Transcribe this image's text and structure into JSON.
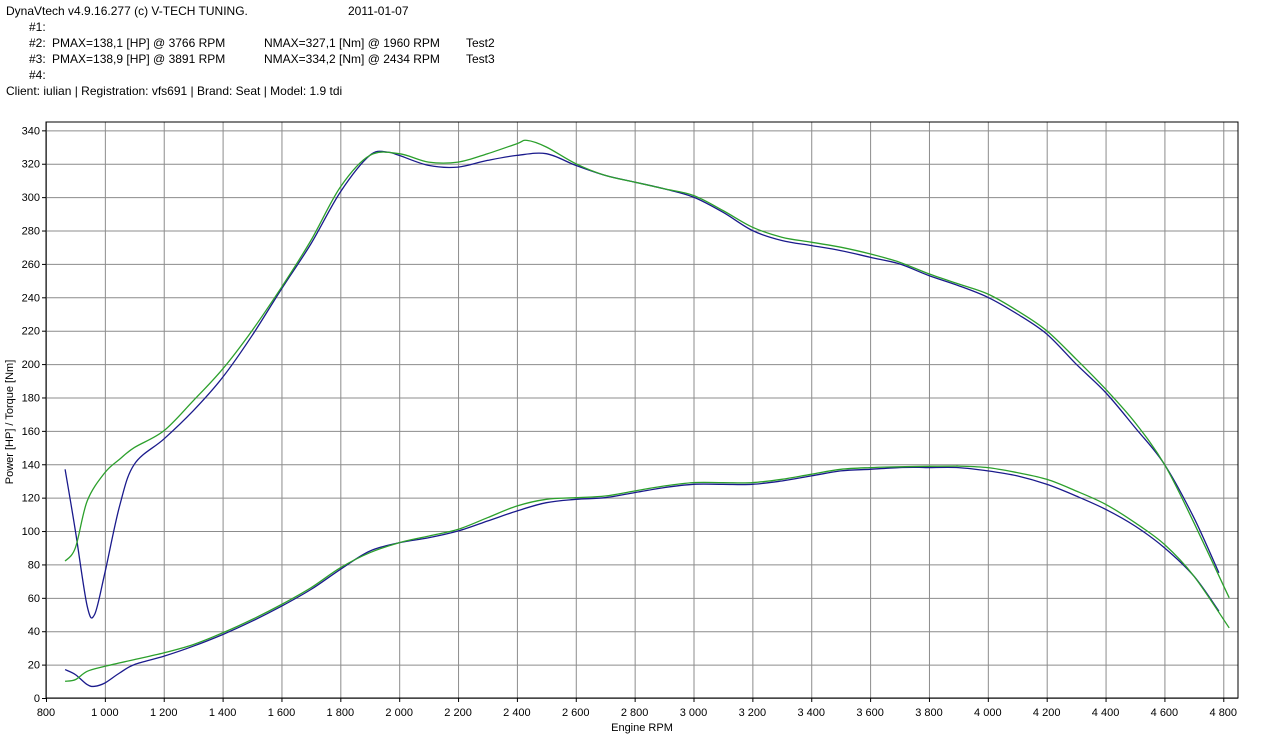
{
  "header": {
    "app_line": "DynaVtech v4.9.16.277 (c) V-TECH TUNING.",
    "date": "2011-01-07",
    "runs": [
      {
        "id": "#1:",
        "pmax": "",
        "nmax": "",
        "name": ""
      },
      {
        "id": "#2:",
        "pmax": "PMAX=138,1 [HP] @ 3766 RPM",
        "nmax": "NMAX=327,1 [Nm] @ 1960 RPM",
        "name": "Test2"
      },
      {
        "id": "#3:",
        "pmax": "PMAX=138,9 [HP] @ 3891 RPM",
        "nmax": "NMAX=334,2 [Nm] @ 2434 RPM",
        "name": "Test3"
      },
      {
        "id": "#4:",
        "pmax": "",
        "nmax": "",
        "name": ""
      }
    ],
    "client_line": "Client: iulian | Registration: vfs691 | Brand: Seat | Model: 1.9 tdi"
  },
  "chart_data": {
    "type": "line",
    "xlabel": "Engine RPM",
    "ylabel": "Power [HP] / Torque [Nm]",
    "xlim": [
      800,
      4850
    ],
    "ylim": [
      0,
      345
    ],
    "x_ticks": [
      800,
      1000,
      1200,
      1400,
      1600,
      1800,
      2000,
      2200,
      2400,
      2600,
      2800,
      3000,
      3200,
      3400,
      3600,
      3800,
      4000,
      4200,
      4400,
      4600,
      4800
    ],
    "x_tick_labels": [
      "800",
      "1 000",
      "1 200",
      "1 400",
      "1 600",
      "1 800",
      "2 000",
      "2 200",
      "2 400",
      "2 600",
      "2 800",
      "3 000",
      "3 200",
      "3 400",
      "3 600",
      "3 800",
      "4 000",
      "4 200",
      "4 400",
      "4 600",
      "4 800"
    ],
    "y_ticks": [
      0,
      20,
      40,
      60,
      80,
      100,
      120,
      140,
      160,
      180,
      200,
      220,
      240,
      260,
      280,
      300,
      320,
      340
    ],
    "grid": true,
    "series": [
      {
        "run": "Test2",
        "quantity": "torque",
        "color": "#1a1a8c",
        "x": [
          865,
          900,
          940,
          965,
          1000,
          1050,
          1100,
          1200,
          1300,
          1400,
          1500,
          1600,
          1700,
          1800,
          1900,
          1960,
          2000,
          2100,
          2200,
          2300,
          2400,
          2500,
          2600,
          2700,
          2800,
          2900,
          3000,
          3100,
          3200,
          3300,
          3400,
          3500,
          3600,
          3700,
          3800,
          3900,
          4000,
          4100,
          4200,
          4300,
          4400,
          4500,
          4600,
          4700,
          4785
        ],
        "y": [
          137,
          100,
          55,
          50,
          75,
          115,
          140,
          155,
          172,
          192,
          217,
          245,
          272,
          303,
          325,
          327,
          325,
          319,
          318,
          322,
          325,
          326,
          319,
          313,
          309,
          305,
          300,
          291,
          280,
          274,
          271,
          268,
          264,
          260,
          253,
          247,
          240,
          230,
          218,
          200,
          183,
          162,
          140,
          108,
          75
        ]
      },
      {
        "run": "Test3",
        "quantity": "torque",
        "color": "#2ca02c",
        "x": [
          865,
          900,
          940,
          1000,
          1050,
          1100,
          1200,
          1300,
          1400,
          1500,
          1600,
          1700,
          1800,
          1900,
          2000,
          2100,
          2200,
          2300,
          2400,
          2434,
          2500,
          2600,
          2700,
          2800,
          2900,
          3000,
          3100,
          3200,
          3300,
          3400,
          3500,
          3600,
          3700,
          3800,
          3900,
          4000,
          4100,
          4200,
          4300,
          4400,
          4500,
          4600,
          4700,
          4820
        ],
        "y": [
          82,
          90,
          118,
          135,
          143,
          150,
          160,
          178,
          197,
          220,
          246,
          274,
          306,
          325,
          326,
          321,
          321,
          326,
          332,
          334,
          330,
          320,
          313,
          309,
          305,
          301,
          292,
          282,
          276,
          273,
          270,
          266,
          261,
          254,
          248,
          242,
          232,
          220,
          203,
          185,
          165,
          140,
          105,
          60
        ]
      },
      {
        "run": "Test2",
        "quantity": "power",
        "color": "#1a1a8c",
        "x": [
          865,
          900,
          940,
          965,
          1000,
          1050,
          1100,
          1200,
          1300,
          1400,
          1500,
          1600,
          1700,
          1800,
          1900,
          2000,
          2100,
          2200,
          2300,
          2400,
          2500,
          2600,
          2700,
          2800,
          2900,
          3000,
          3100,
          3200,
          3300,
          3400,
          3500,
          3600,
          3700,
          3766,
          3800,
          3900,
          4000,
          4100,
          4200,
          4300,
          4400,
          4500,
          4600,
          4700,
          4785
        ],
        "y": [
          17,
          14,
          8,
          7,
          9,
          15,
          20,
          25,
          31,
          38,
          46,
          55,
          65,
          77,
          88,
          93,
          96,
          100,
          106,
          112,
          117,
          119,
          120,
          123,
          126,
          128,
          128,
          128,
          130,
          133,
          136,
          137,
          138,
          138.1,
          138,
          138,
          136,
          133,
          128,
          121,
          113,
          103,
          90,
          73,
          52
        ]
      },
      {
        "run": "Test3",
        "quantity": "power",
        "color": "#2ca02c",
        "x": [
          865,
          900,
          940,
          1000,
          1050,
          1100,
          1200,
          1300,
          1400,
          1500,
          1600,
          1700,
          1800,
          1900,
          2000,
          2100,
          2200,
          2300,
          2400,
          2500,
          2600,
          2700,
          2800,
          2900,
          3000,
          3100,
          3200,
          3300,
          3400,
          3500,
          3600,
          3700,
          3800,
          3891,
          3900,
          4000,
          4100,
          4200,
          4300,
          4400,
          4500,
          4600,
          4700,
          4820
        ],
        "y": [
          10,
          11,
          16,
          19,
          21,
          23,
          27,
          32,
          39,
          47,
          56,
          66,
          78,
          87,
          93,
          97,
          101,
          108,
          115,
          119,
          120,
          121,
          124,
          127,
          129,
          129,
          129,
          131,
          134,
          137,
          138,
          138.5,
          138.8,
          138.9,
          138.9,
          138,
          135,
          131,
          124,
          116,
          105,
          92,
          73,
          42
        ]
      }
    ]
  }
}
